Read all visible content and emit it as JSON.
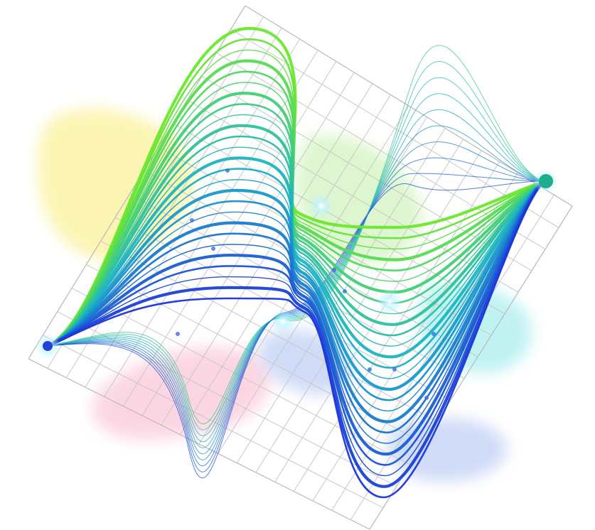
{
  "illustration": {
    "subject": "abstract-wave-line-art",
    "palette": {
      "green": "#6be82c",
      "teal": "#18b3c6",
      "blue": "#1a36d9",
      "grid": "#c7c7c7",
      "blob_yellow": "#fbf3a6",
      "blob_green": "#d8f5c8",
      "blob_pink": "#fbd0de",
      "blob_cyan": "#b7f0f0",
      "blob_blue": "#c8d6f6",
      "glow": "#ffffff"
    },
    "curve_count": 26,
    "mesh_count": 10,
    "grid_cells": [
      18,
      15
    ]
  }
}
